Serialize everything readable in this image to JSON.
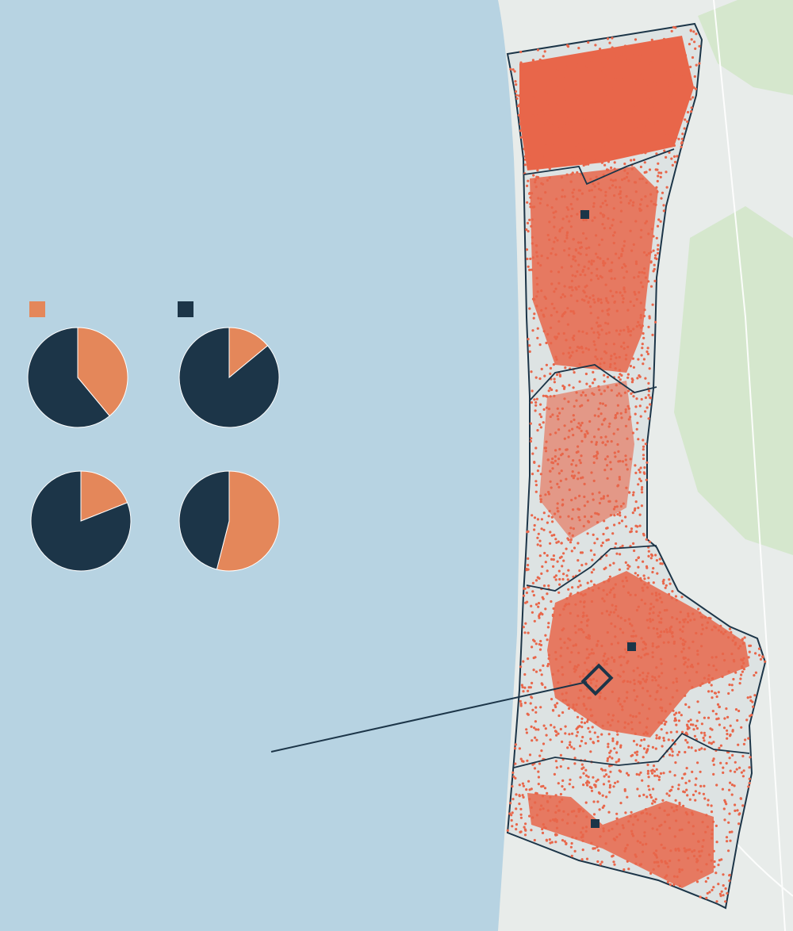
{
  "legend_colors": [
    "#e4875a",
    "#1c3548"
  ],
  "pies": [
    {
      "values": [
        39,
        61
      ]
    },
    {
      "values": [
        14,
        86
      ]
    },
    {
      "values": [
        19,
        81
      ]
    },
    {
      "values": [
        54,
        46
      ]
    }
  ]
}
